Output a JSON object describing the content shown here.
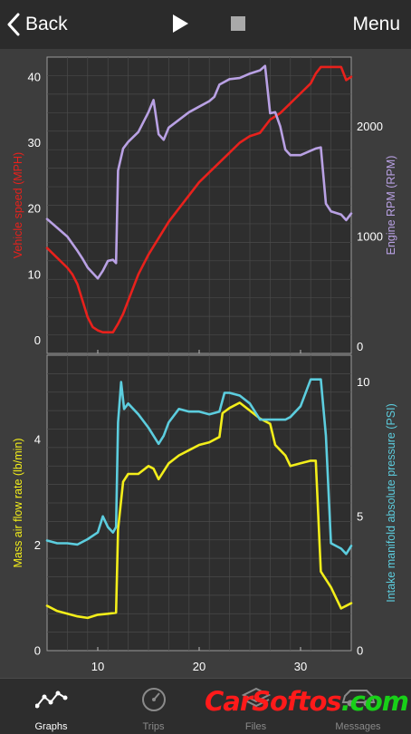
{
  "navbar": {
    "back_label": "Back",
    "menu_label": "Menu"
  },
  "icons": {
    "back": "chevron-left-icon",
    "play": "play-icon",
    "stop": "stop-icon",
    "graphs": "line-graph-icon",
    "trips": "speedometer-icon",
    "files": "stacked-files-icon",
    "messages": "car-icon"
  },
  "tabs": [
    {
      "label": "Graphs",
      "active": true
    },
    {
      "label": "Trips",
      "active": false
    },
    {
      "label": "Files",
      "active": false
    },
    {
      "label": "Messages",
      "active": false
    }
  ],
  "watermark": {
    "part1": "CarSoftos",
    "part2": ".com"
  },
  "chart_data": [
    {
      "type": "line",
      "xlim": [
        5,
        35
      ],
      "xticks": [
        10,
        20,
        30
      ],
      "grid": true,
      "series": [
        {
          "name": "Vehicle speed (MPH)",
          "axis": "left",
          "color": "#e8211c",
          "ylim": [
            -2,
            43
          ],
          "yticks": [
            0,
            10,
            20,
            30,
            40
          ],
          "x": [
            5,
            6,
            7,
            7.5,
            8,
            8.5,
            9,
            9.5,
            10,
            10.5,
            11,
            11.5,
            12,
            12.5,
            13,
            14,
            15,
            16,
            17,
            18,
            19,
            20,
            21,
            22,
            23,
            24,
            25,
            26,
            27,
            28,
            29,
            30,
            31,
            31.5,
            32,
            33,
            34,
            34.5,
            35
          ],
          "y": [
            14,
            12.5,
            11,
            10,
            8.5,
            6,
            3.5,
            2,
            1.5,
            1.2,
            1.2,
            1.2,
            2.5,
            4,
            6,
            10,
            13,
            15.5,
            18,
            20,
            22,
            24,
            25.5,
            27,
            28.5,
            30,
            31,
            31.5,
            33.5,
            34.5,
            36,
            37.5,
            39,
            40.5,
            41.5,
            41.5,
            41.5,
            39.5,
            40
          ]
        },
        {
          "name": "Engine RPM (RPM)",
          "axis": "right",
          "color": "#b9a1e4",
          "ylim": [
            -60,
            2630
          ],
          "yticks": [
            0,
            1000,
            2000
          ],
          "x": [
            5,
            6,
            7,
            8,
            8.5,
            9,
            9.5,
            10,
            10.5,
            11,
            11.5,
            11.8,
            12,
            12.5,
            13,
            14,
            15,
            15.5,
            16,
            16.5,
            17,
            18,
            19,
            20,
            21,
            21.5,
            22,
            23,
            24,
            25,
            26,
            26.5,
            27,
            27.5,
            28,
            28.5,
            29,
            30,
            31,
            31.5,
            32,
            32.5,
            33,
            34,
            34.5,
            35
          ],
          "y": [
            1160,
            1080,
            1000,
            870,
            800,
            720,
            670,
            620,
            690,
            780,
            790,
            760,
            1600,
            1800,
            1860,
            1950,
            2130,
            2240,
            1930,
            1880,
            1990,
            2060,
            2130,
            2180,
            2230,
            2270,
            2380,
            2430,
            2440,
            2480,
            2510,
            2550,
            2120,
            2130,
            2000,
            1790,
            1740,
            1740,
            1780,
            1800,
            1810,
            1300,
            1230,
            1200,
            1150,
            1210
          ]
        }
      ]
    },
    {
      "type": "line",
      "xlim": [
        5,
        35
      ],
      "xticks": [
        10,
        20,
        30
      ],
      "grid": true,
      "series": [
        {
          "name": "Mass air flow rate (lb/min)",
          "axis": "left",
          "color": "#f3ee1a",
          "ylim": [
            0,
            5.6
          ],
          "yticks": [
            0,
            2,
            4
          ],
          "x": [
            5,
            6,
            7,
            8,
            9,
            10,
            11,
            11.8,
            12,
            12.5,
            13,
            14,
            15,
            15.5,
            16,
            17,
            18,
            19,
            20,
            21,
            22,
            22.3,
            23,
            24,
            25,
            26,
            27,
            27.5,
            28,
            28.5,
            29,
            30,
            31,
            31.5,
            32,
            33,
            34,
            35
          ],
          "y": [
            0.85,
            0.75,
            0.7,
            0.65,
            0.62,
            0.68,
            0.7,
            0.72,
            2.3,
            3.2,
            3.35,
            3.35,
            3.5,
            3.45,
            3.25,
            3.55,
            3.7,
            3.8,
            3.9,
            3.95,
            4.05,
            4.5,
            4.6,
            4.7,
            4.55,
            4.4,
            4.3,
            3.9,
            3.8,
            3.7,
            3.5,
            3.55,
            3.6,
            3.6,
            1.5,
            1.2,
            0.8,
            0.9
          ]
        },
        {
          "name": "Intake manifold absolute pressure (PSI)",
          "axis": "right",
          "color": "#5ccdde",
          "ylim": [
            0,
            11
          ],
          "yticks": [
            0,
            5,
            10
          ],
          "x": [
            5,
            6,
            7,
            8,
            9,
            10,
            10.5,
            11,
            11.5,
            11.8,
            12,
            12.3,
            12.6,
            13,
            14,
            15,
            16,
            16.5,
            17,
            18,
            19,
            20,
            21,
            22,
            22.5,
            23,
            24,
            25,
            26,
            27,
            28,
            28.5,
            29,
            30,
            31,
            32,
            32.5,
            33,
            34,
            34.5,
            35
          ],
          "y": [
            4.1,
            4.0,
            4.0,
            3.95,
            4.15,
            4.4,
            5.0,
            4.6,
            4.4,
            4.6,
            8.5,
            10.0,
            9.0,
            9.2,
            8.8,
            8.3,
            7.7,
            8.0,
            8.5,
            9.0,
            8.9,
            8.9,
            8.8,
            8.9,
            9.6,
            9.6,
            9.5,
            9.2,
            8.6,
            8.6,
            8.6,
            8.6,
            8.7,
            9.1,
            10.1,
            10.1,
            8.0,
            4.0,
            3.8,
            3.6,
            3.9
          ]
        }
      ]
    }
  ]
}
